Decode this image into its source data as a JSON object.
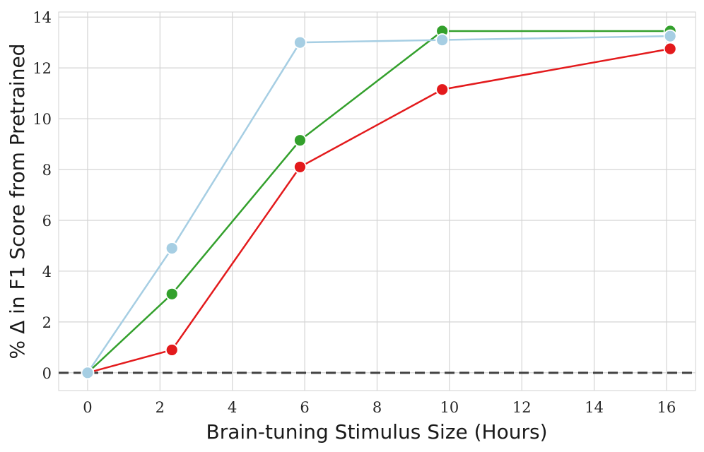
{
  "chart_data": {
    "type": "line",
    "xlabel": "Brain-tuning Stimulus Size (Hours)",
    "ylabel": "% Δ in F1 Score from Pretrained",
    "xlim": [
      -0.8,
      16.8
    ],
    "ylim": [
      -0.7,
      14.2
    ],
    "xticks": [
      0,
      2,
      4,
      6,
      8,
      10,
      12,
      14,
      16
    ],
    "yticks": [
      0,
      2,
      4,
      6,
      8,
      10,
      12,
      14
    ],
    "grid": true,
    "reference_line": {
      "y": 0,
      "style": "dashed",
      "color": "#404040"
    },
    "series": [
      {
        "color": "#e31a1c",
        "x": [
          0,
          2.33,
          5.87,
          9.8,
          16.1
        ],
        "y": [
          0,
          0.9,
          8.1,
          11.15,
          12.75
        ]
      },
      {
        "color": "#33a02c",
        "x": [
          0,
          2.33,
          5.87,
          9.8,
          16.1
        ],
        "y": [
          0,
          3.1,
          9.15,
          13.45,
          13.45
        ]
      },
      {
        "color": "#a6cee3",
        "x": [
          0,
          2.33,
          5.87,
          9.8,
          16.1
        ],
        "y": [
          0,
          4.9,
          13.0,
          13.1,
          13.25
        ]
      }
    ]
  }
}
